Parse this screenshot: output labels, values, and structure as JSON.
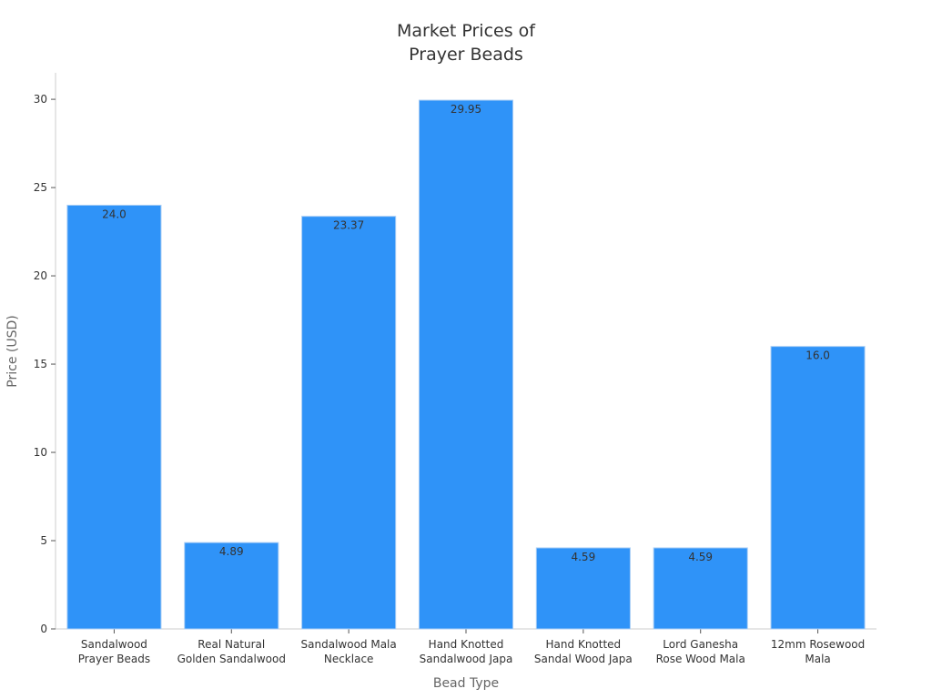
{
  "chart_data": {
    "type": "bar",
    "title": [
      "Market Prices of",
      "Prayer Beads"
    ],
    "xlabel": "Bead Type",
    "ylabel": "Price (USD)",
    "categories": [
      [
        "Sandalwood",
        "Prayer Beads"
      ],
      [
        "Real Natural",
        "Golden Sandalwood"
      ],
      [
        "Sandalwood Mala",
        "Necklace"
      ],
      [
        "Hand Knotted",
        "Sandalwood Japa"
      ],
      [
        "Hand Knotted",
        "Sandal Wood Japa"
      ],
      [
        "Lord Ganesha",
        "Rose Wood Mala"
      ],
      [
        "12mm Rosewood",
        "Mala"
      ]
    ],
    "values": [
      24.0,
      4.89,
      23.37,
      29.95,
      4.59,
      4.59,
      16.0
    ],
    "data_labels": [
      "24.0",
      "4.89",
      "23.37",
      "29.95",
      "4.59",
      "4.59",
      "16.0"
    ],
    "ylim": [
      0,
      31.5
    ],
    "yticks": [
      0,
      5,
      10,
      15,
      20,
      25,
      30
    ],
    "grid": false,
    "bar_color": "#2f93f8",
    "bar_edge_color": "#a8cdf5",
    "axis_color": "#cccccc",
    "text_color": "#333333",
    "axis_title_color": "#666666"
  }
}
